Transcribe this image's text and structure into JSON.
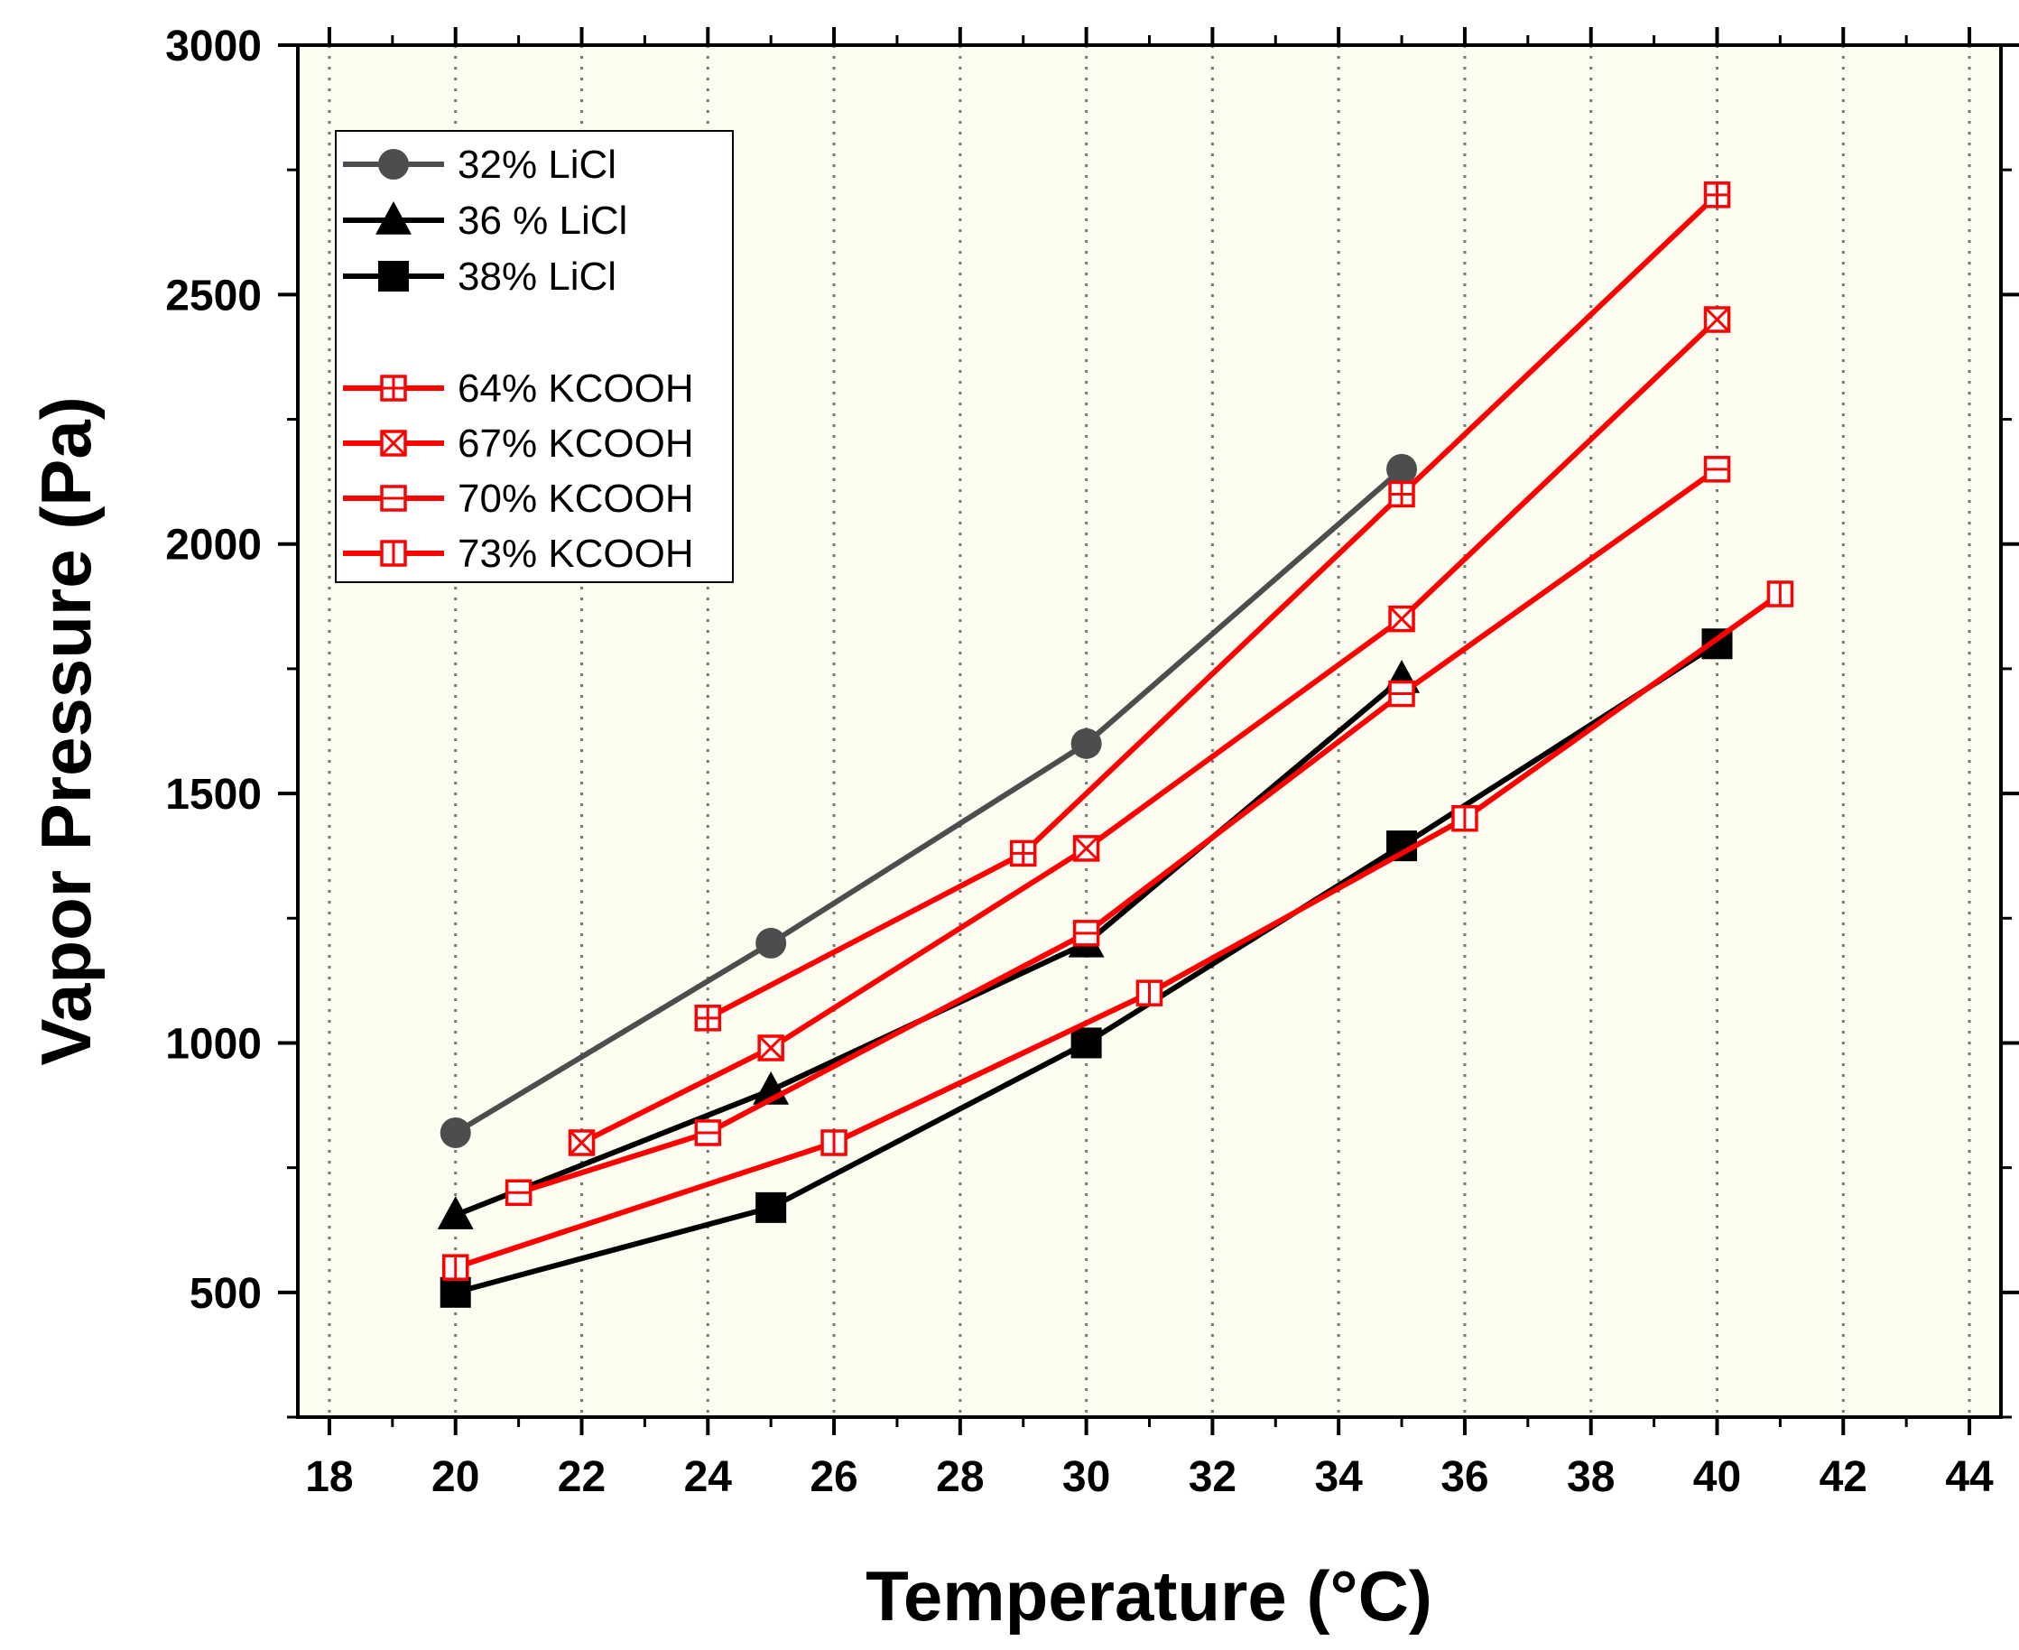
{
  "chart_data": {
    "type": "line",
    "title": "",
    "xlabel": "Temperature (°C)",
    "ylabel": "Vapor Pressure (Pa)",
    "xlim": [
      17.5,
      44.5
    ],
    "ylim": [
      250,
      3000
    ],
    "xticks": [
      18,
      20,
      22,
      24,
      26,
      28,
      30,
      32,
      34,
      36,
      38,
      40,
      42,
      44
    ],
    "yticks": [
      500,
      1000,
      1500,
      2000,
      2500,
      3000
    ],
    "grid": "vertical dotted",
    "background": "#fcfcf0",
    "legend_position": "top-left",
    "series": [
      {
        "name": "32% LiCl",
        "color": "#4d4d4d",
        "marker": "circle",
        "x": [
          20,
          25,
          30,
          35
        ],
        "y": [
          820,
          1200,
          1600,
          2150
        ]
      },
      {
        "name": "36 % LiCl",
        "color": "#000000",
        "marker": "triangle",
        "x": [
          20,
          25,
          30,
          35
        ],
        "y": [
          655,
          905,
          1200,
          1730
        ]
      },
      {
        "name": "38% LiCl",
        "color": "#000000",
        "marker": "square",
        "x": [
          20,
          25,
          30,
          35,
          40
        ],
        "y": [
          500,
          670,
          1000,
          1395,
          1800
        ]
      },
      {
        "name": "64% KCOOH",
        "color": "#ff0000",
        "marker": "square-plus",
        "x": [
          24,
          29,
          35,
          40
        ],
        "y": [
          1050,
          1380,
          2100,
          2700
        ]
      },
      {
        "name": "67% KCOOH",
        "color": "#ff0000",
        "marker": "square-x",
        "x": [
          22,
          25,
          30,
          35,
          40
        ],
        "y": [
          800,
          990,
          1390,
          1850,
          2450
        ]
      },
      {
        "name": "70% KCOOH",
        "color": "#ff0000",
        "marker": "square-hline",
        "x": [
          21,
          24,
          30,
          35,
          40
        ],
        "y": [
          700,
          820,
          1220,
          1700,
          2150
        ]
      },
      {
        "name": "73% KCOOH",
        "color": "#ff0000",
        "marker": "square-vline",
        "x": [
          20,
          26,
          31,
          36,
          41
        ],
        "y": [
          550,
          800,
          1100,
          1450,
          1900
        ]
      }
    ]
  }
}
